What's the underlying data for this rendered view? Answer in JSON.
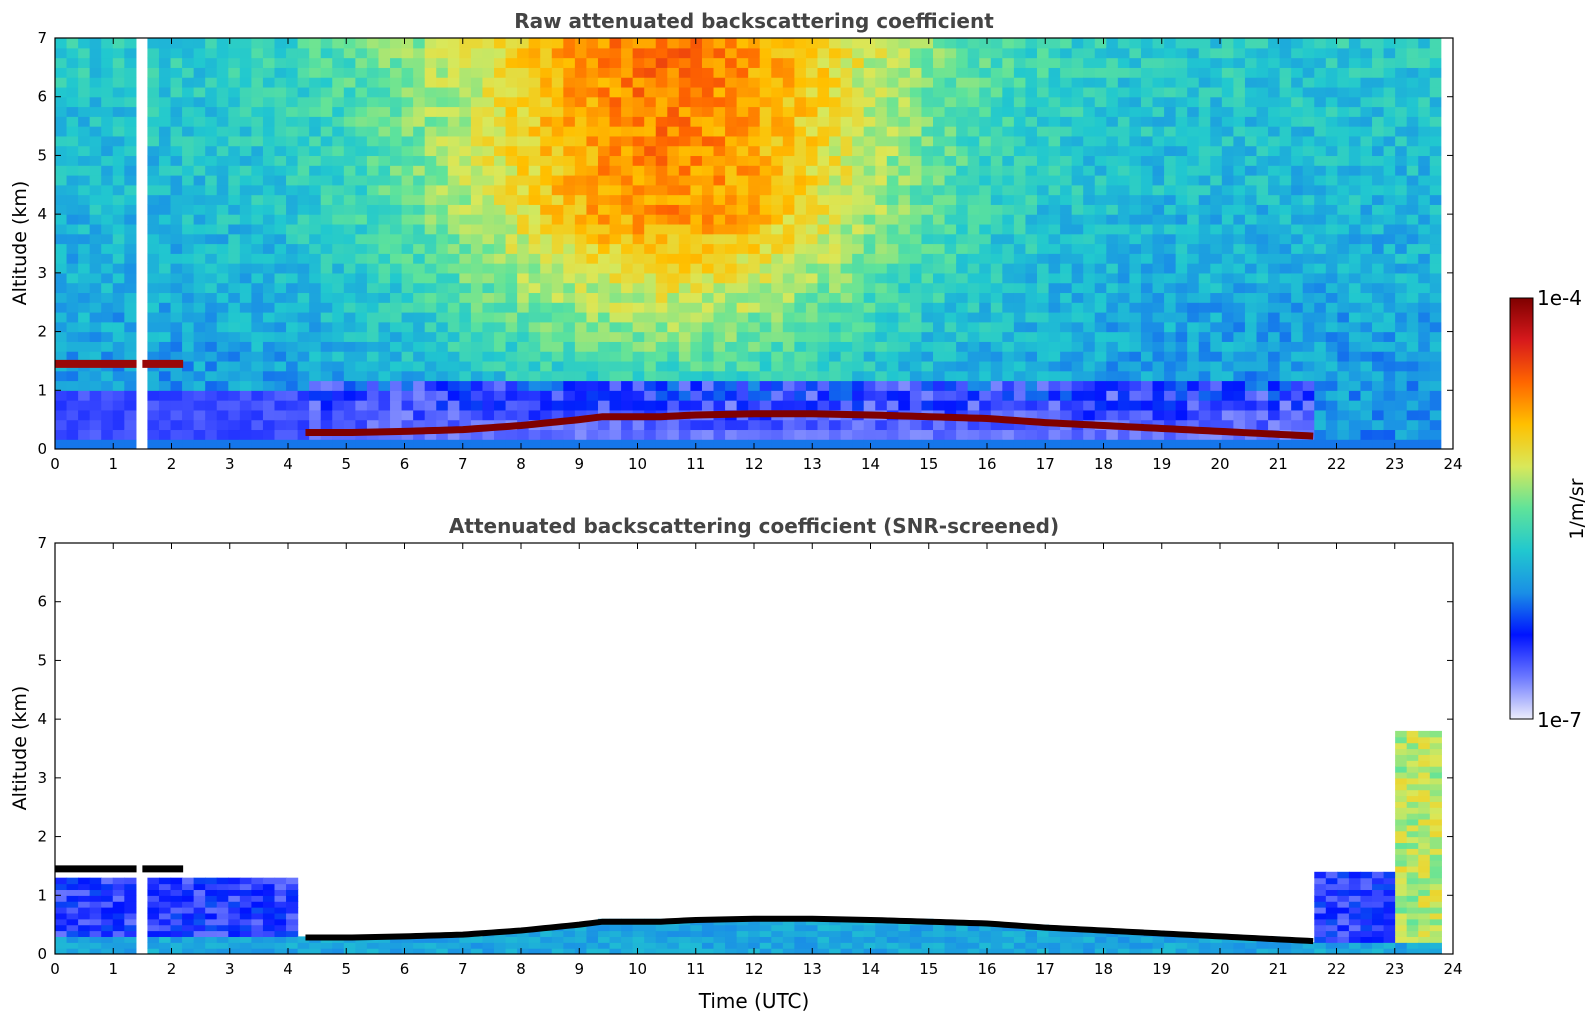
{
  "chart_data": [
    {
      "type": "heatmap",
      "title": "Raw attenuated backscattering coefficient",
      "xlabel": "",
      "ylabel": "Altitude (km)",
      "xlim": [
        0,
        24
      ],
      "ylim": [
        0,
        7
      ],
      "x_ticks": [
        "0",
        "1",
        "2",
        "3",
        "4",
        "5",
        "6",
        "7",
        "8",
        "9",
        "10",
        "11",
        "12",
        "13",
        "14",
        "15",
        "16",
        "17",
        "18",
        "19",
        "20",
        "21",
        "22",
        "23",
        "24"
      ],
      "y_ticks": [
        "0",
        "1",
        "2",
        "3",
        "4",
        "5",
        "6",
        "7"
      ],
      "data_end_time": 23.8,
      "data_gaps": [
        1.4,
        1.5
      ],
      "boundary_layer_top_km": {
        "time": [
          4.3,
          5,
          6,
          7,
          8,
          9,
          9.4,
          10.4,
          11,
          12,
          13,
          14,
          15,
          16,
          17,
          18,
          19,
          20,
          21,
          21.6
        ],
        "altitude": [
          0.28,
          0.28,
          0.3,
          0.33,
          0.4,
          0.5,
          0.55,
          0.55,
          0.58,
          0.6,
          0.6,
          0.58,
          0.55,
          0.52,
          0.45,
          0.4,
          0.35,
          0.3,
          0.25,
          0.22
        ]
      },
      "cloud_layers": [
        {
          "t_start": 0,
          "t_end": 2.2,
          "altitude_km": 1.45
        }
      ]
    },
    {
      "type": "heatmap",
      "title": "Attenuated backscattering coefficient (SNR-screened)",
      "xlabel": "Time (UTC)",
      "ylabel": "Altitude (km)",
      "xlim": [
        0,
        24
      ],
      "ylim": [
        0,
        7
      ],
      "x_ticks": [
        "0",
        "1",
        "2",
        "3",
        "4",
        "5",
        "6",
        "7",
        "8",
        "9",
        "10",
        "11",
        "12",
        "13",
        "14",
        "15",
        "16",
        "17",
        "18",
        "19",
        "20",
        "21",
        "22",
        "23",
        "24"
      ],
      "y_ticks": [
        "0",
        "1",
        "2",
        "3",
        "4",
        "5",
        "6",
        "7"
      ],
      "residual_layer_max_km": [
        {
          "t_start": 0,
          "t_end": 4.2,
          "altitude_km": 1.3
        },
        {
          "t_start": 21.6,
          "t_end": 23.0,
          "altitude_km": 1.4
        },
        {
          "t_start": 23.0,
          "t_end": 23.8,
          "altitude_km": 3.8
        }
      ]
    }
  ],
  "colorbar": {
    "label": "1/m/sr",
    "max_label": "1e-4",
    "min_label": "1e-7",
    "colors": [
      "#7f0000",
      "#d7191c",
      "#ff6600",
      "#ffc000",
      "#d9e85a",
      "#5fe39a",
      "#21c8cf",
      "#1a8fe6",
      "#0013ff",
      "#6b78ff",
      "#ecedfb"
    ]
  }
}
